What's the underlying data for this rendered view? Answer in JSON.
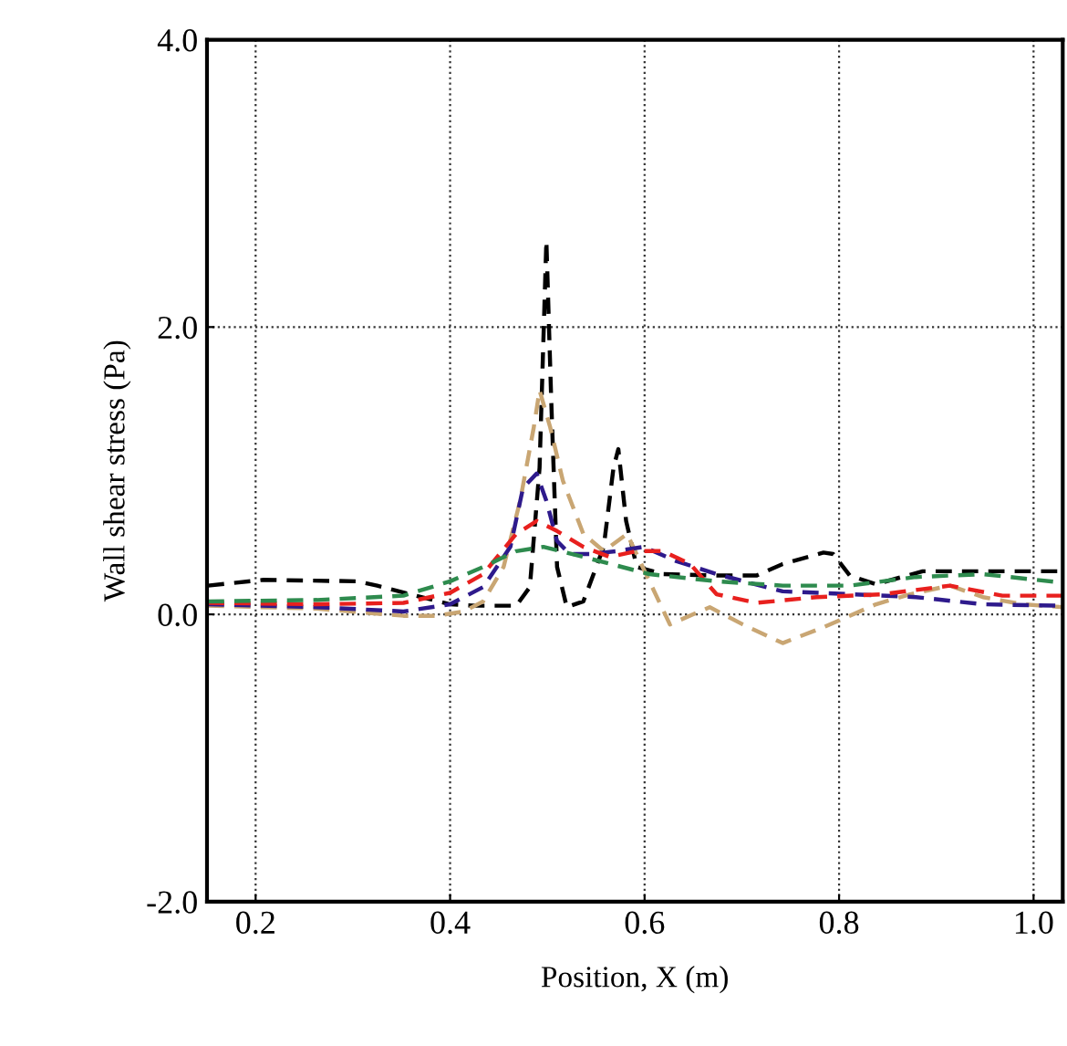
{
  "chart_data": {
    "type": "line",
    "xlabel": "Position, X (m)",
    "ylabel": "Wall shear stress (Pa)",
    "xlim": [
      0.15,
      1.03
    ],
    "xticks": [
      0.2,
      0.4,
      0.6,
      0.8,
      {
        "value": 1,
        "label": "1.0"
      }
    ],
    "ylim": [
      -2.0,
      4.0
    ],
    "yticks": [
      {
        "value": -2,
        "label": "-2.0"
      },
      {
        "value": 0,
        "label": "0.0"
      },
      {
        "value": 2,
        "label": "2.0"
      },
      {
        "value": 4,
        "label": "4.0"
      }
    ],
    "grid": true,
    "line_style": "dashed",
    "marker": "none",
    "series": [
      {
        "color": "#000000",
        "x": [
          0.151,
          0.208,
          0.304,
          0.325,
          0.359,
          0.4,
          0.427,
          0.468,
          0.482,
          0.492,
          0.499,
          0.504,
          0.51,
          0.52,
          0.537,
          0.558,
          0.568,
          0.573,
          0.581,
          0.592,
          0.619,
          0.674,
          0.715,
          0.742,
          0.784,
          0.794,
          0.811,
          0.838,
          0.886,
          0.948,
          1.03
        ],
        "values": [
          0.2,
          0.24,
          0.23,
          0.2,
          0.14,
          0.07,
          0.06,
          0.06,
          0.19,
          1.02,
          2.6,
          1.49,
          0.33,
          0.05,
          0.09,
          0.47,
          1.02,
          1.15,
          0.65,
          0.33,
          0.28,
          0.27,
          0.27,
          0.35,
          0.43,
          0.42,
          0.27,
          0.21,
          0.3,
          0.3,
          0.3
        ]
      },
      {
        "color": "#c9a673",
        "x": [
          0.151,
          0.263,
          0.352,
          0.386,
          0.414,
          0.434,
          0.455,
          0.472,
          0.486,
          0.492,
          0.503,
          0.516,
          0.537,
          0.558,
          0.582,
          0.605,
          0.626,
          0.667,
          0.701,
          0.742,
          0.784,
          0.838,
          0.873,
          0.914,
          0.948,
          0.989,
          1.03
        ],
        "values": [
          0.06,
          0.04,
          -0.01,
          -0.01,
          0.02,
          0.09,
          0.33,
          0.79,
          1.3,
          1.56,
          1.3,
          0.93,
          0.56,
          0.44,
          0.56,
          0.23,
          -0.07,
          0.05,
          -0.07,
          -0.2,
          -0.09,
          0.07,
          0.14,
          0.2,
          0.12,
          0.07,
          0.05
        ]
      },
      {
        "color": "#2e1a8c",
        "x": [
          0.151,
          0.263,
          0.352,
          0.4,
          0.434,
          0.462,
          0.475,
          0.489,
          0.499,
          0.51,
          0.523,
          0.544,
          0.571,
          0.599,
          0.633,
          0.674,
          0.742,
          0.811,
          0.879,
          0.948,
          1.03
        ],
        "values": [
          0.07,
          0.05,
          0.02,
          0.07,
          0.19,
          0.47,
          0.88,
          0.98,
          0.79,
          0.51,
          0.42,
          0.42,
          0.44,
          0.47,
          0.37,
          0.28,
          0.16,
          0.14,
          0.12,
          0.07,
          0.06
        ]
      },
      {
        "color": "#e8201e",
        "x": [
          0.151,
          0.263,
          0.352,
          0.4,
          0.434,
          0.468,
          0.489,
          0.51,
          0.537,
          0.564,
          0.592,
          0.619,
          0.647,
          0.674,
          0.715,
          0.777,
          0.845,
          0.914,
          0.968,
          1.03
        ],
        "values": [
          0.08,
          0.07,
          0.08,
          0.15,
          0.28,
          0.56,
          0.65,
          0.58,
          0.47,
          0.4,
          0.44,
          0.44,
          0.35,
          0.14,
          0.08,
          0.12,
          0.14,
          0.2,
          0.13,
          0.13
        ]
      },
      {
        "color": "#2e8b4e",
        "x": [
          0.151,
          0.263,
          0.352,
          0.4,
          0.434,
          0.468,
          0.496,
          0.537,
          0.605,
          0.674,
          0.742,
          0.811,
          0.879,
          0.948,
          1.03
        ],
        "values": [
          0.09,
          0.1,
          0.13,
          0.23,
          0.33,
          0.44,
          0.47,
          0.4,
          0.28,
          0.23,
          0.2,
          0.2,
          0.26,
          0.28,
          0.22
        ]
      }
    ]
  }
}
